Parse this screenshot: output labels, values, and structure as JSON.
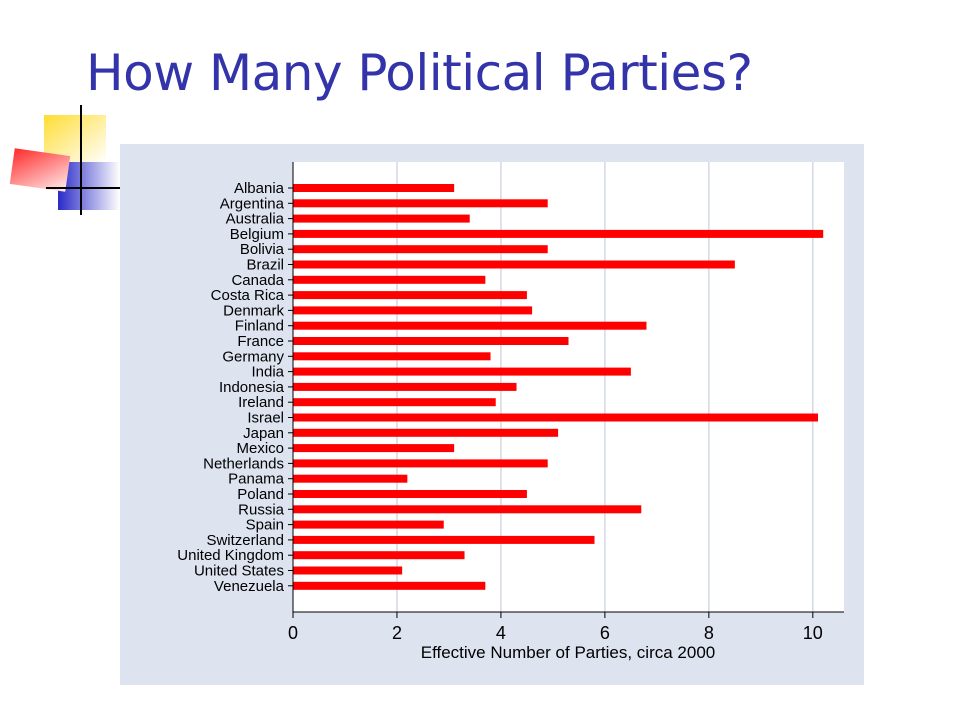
{
  "slide": {
    "title": "How Many Political Parties?"
  },
  "colors": {
    "title": "#3333aa",
    "bar": "#ff0000",
    "panel_bg": "#dde3ef",
    "plot_bg": "#ffffff",
    "gridline": "#d4d8e6",
    "decor_yellow": "#ffcc00",
    "decor_blue": "#3333cc",
    "decor_red": "#ff3333"
  },
  "chart_data": {
    "type": "bar",
    "orientation": "horizontal",
    "categories": [
      "Albania",
      "Argentina",
      "Australia",
      "Belgium",
      "Bolivia",
      "Brazil",
      "Canada",
      "Costa Rica",
      "Denmark",
      "Finland",
      "France",
      "Germany",
      "India",
      "Indonesia",
      "Ireland",
      "Israel",
      "Japan",
      "Mexico",
      "Netherlands",
      "Panama",
      "Poland",
      "Russia",
      "Spain",
      "Switzerland",
      "United Kingdom",
      "United States",
      "Venezuela"
    ],
    "values": [
      3.1,
      4.9,
      3.4,
      10.2,
      4.9,
      8.5,
      3.7,
      4.5,
      4.6,
      6.8,
      5.3,
      3.8,
      6.5,
      4.3,
      3.9,
      10.1,
      5.1,
      3.1,
      4.9,
      2.2,
      4.5,
      6.7,
      2.9,
      5.8,
      3.3,
      2.1,
      3.7
    ],
    "xlabel": "Effective Number of Parties, circa 2000",
    "ylabel": "",
    "xlim": [
      0,
      10.6
    ],
    "xticks": [
      0,
      2,
      4,
      6,
      8,
      10
    ],
    "grid": "vertical"
  }
}
